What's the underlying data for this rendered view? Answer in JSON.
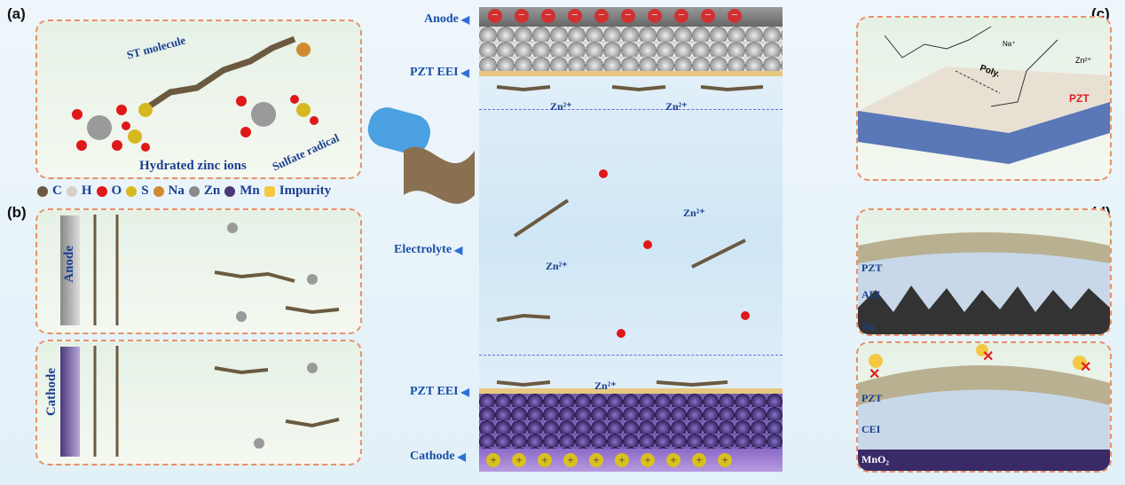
{
  "panels": {
    "a": {
      "label": "(a)",
      "st_molecule": "ST molecule",
      "hydrated_zinc": "Hydrated zinc ions",
      "sulfate": "Sulfate radical"
    },
    "b": {
      "label": "(b)",
      "anode": "Anode",
      "cathode": "Cathode"
    },
    "c": {
      "label": "(c)",
      "na_ion": "Na⁺",
      "zn_ion": "Zn²⁺",
      "poly": "Poly.",
      "pzt": "PZT"
    },
    "d": {
      "label": "(d)",
      "top": {
        "pzt": "PZT",
        "aei": "AEI",
        "zn": "Zn"
      },
      "bottom": {
        "pzt": "PZT",
        "cei": "CEI",
        "mno2": "MnO₂"
      }
    }
  },
  "legend": [
    {
      "label": "C",
      "color": "#6b5a40"
    },
    {
      "label": "H",
      "color": "#d9cfc8"
    },
    {
      "label": "O",
      "color": "#e01818"
    },
    {
      "label": "S",
      "color": "#d8b820"
    },
    {
      "label": "Na",
      "color": "#d08a30"
    },
    {
      "label": "Zn",
      "color": "#8a8a8a"
    },
    {
      "label": "Mn",
      "color": "#4a3a78"
    },
    {
      "label": "Impurity",
      "color": "#f5c842"
    }
  ],
  "center": {
    "anode": "Anode",
    "pzt_eei_top": "PZT EEI",
    "electrolyte": "Electrolyte",
    "pzt_eei_bottom": "PZT EEI",
    "cathode": "Cathode",
    "zn_ion": "Zn²⁺",
    "minus": "−",
    "plus": "+"
  },
  "colors": {
    "border": "#e8906a",
    "label_blue": "#1a4fa8",
    "pzt_red": "#e02020"
  }
}
